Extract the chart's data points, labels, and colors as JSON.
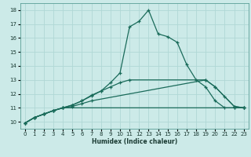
{
  "xlabel": "Humidex (Indice chaleur)",
  "bg_color": "#cceae8",
  "grid_color": "#b0d8d5",
  "line_color": "#1a6b5a",
  "xlim": [
    -0.5,
    23.5
  ],
  "ylim": [
    9.5,
    18.5
  ],
  "xticks": [
    0,
    1,
    2,
    3,
    4,
    5,
    6,
    7,
    8,
    9,
    10,
    11,
    12,
    13,
    14,
    15,
    16,
    17,
    18,
    19,
    20,
    21,
    22,
    23
  ],
  "yticks": [
    10,
    11,
    12,
    13,
    14,
    15,
    16,
    17,
    18
  ],
  "series": [
    {
      "x": [
        0,
        1,
        2,
        3,
        4,
        22,
        23
      ],
      "y": [
        9.9,
        10.3,
        10.55,
        10.8,
        11.0,
        11.0,
        11.0
      ]
    },
    {
      "x": [
        0,
        1,
        2,
        3,
        4,
        5,
        6,
        7,
        19,
        20,
        22,
        23
      ],
      "y": [
        9.9,
        10.3,
        10.55,
        10.8,
        11.0,
        11.1,
        11.3,
        11.5,
        13.0,
        12.5,
        11.1,
        11.0
      ]
    },
    {
      "x": [
        0,
        1,
        2,
        3,
        4,
        5,
        6,
        7,
        8,
        9,
        10,
        11,
        19,
        20,
        21,
        22,
        23
      ],
      "y": [
        9.9,
        10.3,
        10.55,
        10.8,
        11.0,
        11.2,
        11.5,
        11.85,
        12.2,
        12.5,
        12.8,
        13.0,
        13.0,
        12.5,
        11.8,
        11.1,
        11.0
      ]
    },
    {
      "x": [
        0,
        1,
        2,
        3,
        4,
        5,
        6,
        7,
        8,
        9,
        10,
        11,
        12,
        13,
        14,
        15,
        16,
        17,
        18,
        19,
        20,
        21,
        22,
        23
      ],
      "y": [
        9.9,
        10.3,
        10.55,
        10.8,
        11.0,
        11.2,
        11.5,
        11.9,
        12.2,
        12.8,
        13.5,
        16.8,
        17.2,
        18.0,
        16.3,
        16.1,
        15.7,
        14.1,
        13.0,
        12.5,
        11.5,
        11.0,
        11.0,
        11.0
      ]
    }
  ]
}
